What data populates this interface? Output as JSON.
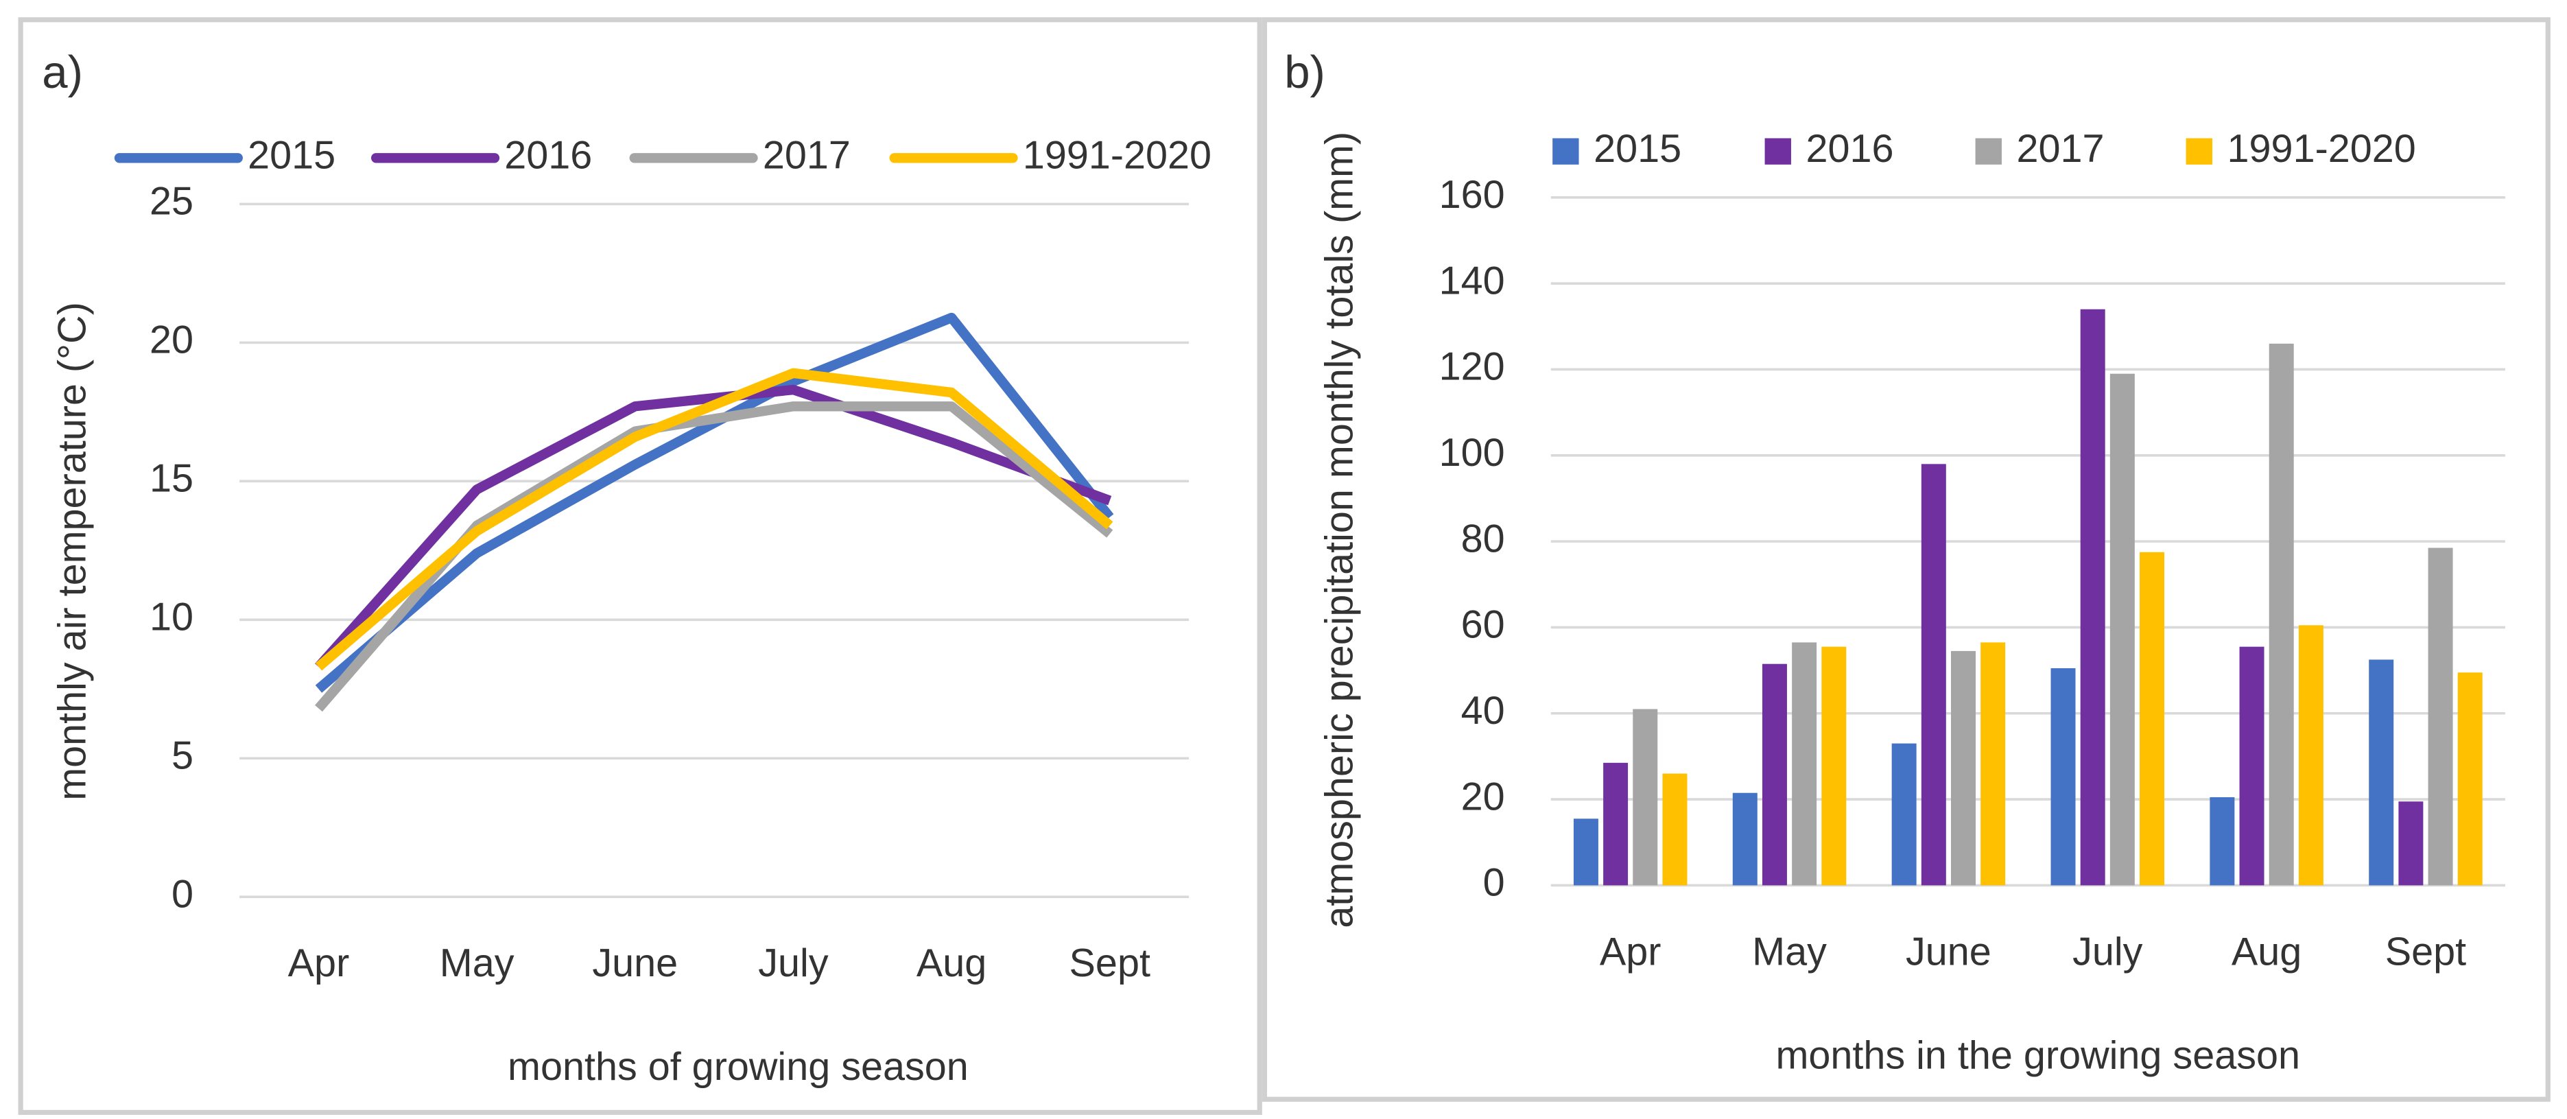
{
  "chart_data": [
    {
      "type": "line",
      "label": "a)",
      "x_label": "months of growing season",
      "y_label": "monthly air temperature  (°C)",
      "categories": [
        "Apr",
        "May",
        "June",
        "July",
        "Aug",
        "Sept"
      ],
      "series": [
        {
          "name": "2015",
          "color": "#4472c4",
          "values": [
            7.5,
            12.4,
            15.6,
            18.6,
            20.9,
            13.7
          ]
        },
        {
          "name": "2016",
          "color": "#7030a0",
          "values": [
            8.3,
            14.7,
            17.7,
            18.3,
            16.4,
            14.3
          ]
        },
        {
          "name": "2017",
          "color": "#a5a5a5",
          "values": [
            6.8,
            13.4,
            16.8,
            17.7,
            17.7,
            13.1
          ]
        },
        {
          "name": "1991-2020",
          "color": "#ffc000",
          "values": [
            8.3,
            13.2,
            16.6,
            18.9,
            18.2,
            13.4
          ]
        }
      ],
      "ylim": [
        0,
        25
      ],
      "yticks": [
        0,
        5,
        10,
        15,
        20,
        25
      ],
      "grid": true,
      "legend": "top"
    },
    {
      "type": "bar",
      "label": "b)",
      "x_label": "months in the growing season",
      "y_label": "atmospheric precipitation monthly totals (mm)",
      "categories": [
        "Apr",
        "May",
        "June",
        "July",
        "Aug",
        "Sept"
      ],
      "series": [
        {
          "name": "2015",
          "color": "#4472c4",
          "values": [
            15.5,
            21.5,
            33,
            50.5,
            20.5,
            52.5
          ]
        },
        {
          "name": "2016",
          "color": "#7030a0",
          "values": [
            28.5,
            51.5,
            98,
            134,
            55.5,
            19.5
          ]
        },
        {
          "name": "2017",
          "color": "#a5a5a5",
          "values": [
            41,
            56.5,
            54.5,
            119,
            126,
            78.5
          ]
        },
        {
          "name": "1991-2020",
          "color": "#ffc000",
          "values": [
            26,
            55.5,
            56.5,
            77.5,
            60.5,
            49.5
          ]
        }
      ],
      "ylim": [
        0,
        160
      ],
      "yticks": [
        0,
        20,
        40,
        60,
        80,
        100,
        120,
        140,
        160
      ],
      "grid": true,
      "legend": "top"
    }
  ]
}
